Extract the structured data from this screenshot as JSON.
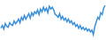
{
  "chart_data": {
    "type": "line",
    "categories": [
      null,
      null,
      null,
      null,
      null,
      null,
      null,
      null,
      null,
      null,
      null,
      null,
      null,
      null,
      null,
      null,
      null,
      null,
      null,
      null,
      null,
      null,
      null,
      null,
      null,
      null,
      null,
      null,
      null,
      null,
      null,
      null,
      null,
      null,
      null,
      null,
      null,
      null,
      null,
      null,
      null,
      null,
      null,
      null,
      null,
      null,
      null,
      null,
      null,
      null,
      null,
      null,
      null,
      null,
      null,
      null,
      null,
      null,
      null,
      null,
      null,
      null,
      null,
      null,
      null,
      null,
      null,
      null,
      null,
      null,
      null,
      null
    ],
    "values": [
      12,
      15,
      11,
      17,
      14,
      13,
      18,
      16,
      15,
      20,
      17,
      19,
      22,
      18,
      24,
      21,
      26,
      22,
      25,
      28,
      23,
      29,
      26,
      30,
      28,
      32,
      27,
      33,
      30,
      35,
      31,
      34,
      29,
      36,
      33,
      35,
      32,
      27,
      26,
      24,
      28,
      22,
      25,
      21,
      23,
      19,
      22,
      18,
      20,
      16,
      18,
      14,
      16,
      12,
      15,
      11,
      13,
      10,
      12,
      9,
      11,
      8,
      10,
      5,
      14,
      19,
      24,
      22,
      29,
      27,
      34,
      37
    ],
    "color": "#3a8fd9",
    "ylim": [
      0,
      42
    ],
    "grid": false,
    "tick_labels": false
  }
}
